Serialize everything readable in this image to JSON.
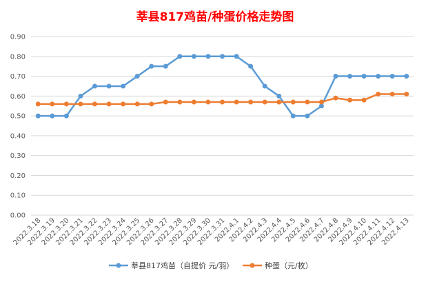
{
  "chart_data": {
    "type": "line",
    "title": "莘县817鸡苗/种蛋价格走势图",
    "categories": [
      "2022.3.18",
      "2022.3.19",
      "2022.3.20",
      "2022.3.21",
      "2022.3.22",
      "2022.3.23",
      "2022.3.24",
      "2022.3.25",
      "2022.3.26",
      "2022.3.27",
      "2022.3.28",
      "2022.3.29",
      "2022.3.30",
      "2022.3.31",
      "2022.4.1",
      "2022.4.2",
      "2022.4.3",
      "2022.4.4",
      "2022.4.5",
      "2022.4.6",
      "2022.4.7",
      "2022.4.8",
      "2022.4.9",
      "2022.4.10",
      "2022.4.11",
      "2022.4.12",
      "2022.4.13"
    ],
    "series": [
      {
        "name": "莘县817鸡苗（自提价 元/羽）",
        "color": "#5b9bd5",
        "values": [
          0.5,
          0.5,
          0.5,
          0.6,
          0.65,
          0.65,
          0.65,
          0.7,
          0.75,
          0.75,
          0.8,
          0.8,
          0.8,
          0.8,
          0.8,
          0.75,
          0.65,
          0.6,
          0.5,
          0.5,
          0.55,
          0.7,
          0.7,
          0.7,
          0.7,
          0.7,
          0.7
        ]
      },
      {
        "name": "种蛋（元/枚）",
        "color": "#ed7d31",
        "values": [
          0.56,
          0.56,
          0.56,
          0.56,
          0.56,
          0.56,
          0.56,
          0.56,
          0.56,
          0.57,
          0.57,
          0.57,
          0.57,
          0.57,
          0.57,
          0.57,
          0.57,
          0.57,
          0.57,
          0.57,
          0.57,
          0.59,
          0.58,
          0.58,
          0.61,
          0.61,
          0.61
        ]
      }
    ],
    "yticks": [
      "0.00",
      "0.10",
      "0.20",
      "0.30",
      "0.40",
      "0.50",
      "0.60",
      "0.70",
      "0.80",
      "0.90"
    ],
    "ylim": [
      0,
      0.9
    ],
    "grid": true,
    "legend": "bottom"
  }
}
